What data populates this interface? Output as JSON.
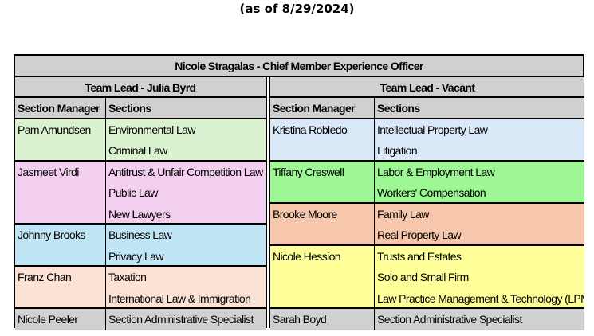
{
  "date_label": "(as of 8/29/2024)",
  "title": "Nicole Stragalas - Chief Member Experience Officer",
  "columns": {
    "manager": "Section Manager",
    "sections": "Sections"
  },
  "teams": [
    {
      "lead": "Team Lead - Julia Byrd",
      "groups": [
        {
          "manager": "Pam Amundsen",
          "color": "#daf2d0",
          "sections": [
            "Environmental Law",
            "Criminal Law"
          ]
        },
        {
          "manager": "Jasmeet Virdi",
          "color": "#f2ceef",
          "sections": [
            "Antitrust & Unfair Competition Law",
            "Public Law",
            "New Lawyers"
          ]
        },
        {
          "manager": "Johnny Brooks",
          "color": "#c0e6f5",
          "sections": [
            "Business Law",
            "Privacy Law"
          ]
        },
        {
          "manager": "Franz Chan",
          "color": "#fbe2d5",
          "sections": [
            "Taxation",
            "International Law & Immigration"
          ]
        },
        {
          "manager": "Nicole Peeler",
          "color": "#d0d0d0",
          "sections": [
            "Section Administrative Specialist"
          ]
        }
      ]
    },
    {
      "lead": "Team Lead - Vacant",
      "groups": [
        {
          "manager": "Kristina Robledo",
          "color": "#dae9f8",
          "sections": [
            "Intellectual Property Law",
            "Litigation"
          ]
        },
        {
          "manager": "Tiffany Creswell",
          "color": "#9cf794",
          "sections": [
            "Labor & Employment Law",
            "Workers' Compensation"
          ]
        },
        {
          "manager": "Brooke Moore",
          "color": "#f7c7ac",
          "sections": [
            "Family Law",
            "Real Property Law"
          ]
        },
        {
          "manager": "Nicole Hession",
          "color": "#ffff99",
          "sections": [
            "Trusts and Estates",
            "Solo and Small Firm",
            "Law Practice Management & Technology (LPMT)"
          ]
        },
        {
          "manager": "Sarah Boyd",
          "color": "#d0d0d0",
          "sections": [
            "Section Administrative Specialist"
          ]
        }
      ]
    }
  ]
}
